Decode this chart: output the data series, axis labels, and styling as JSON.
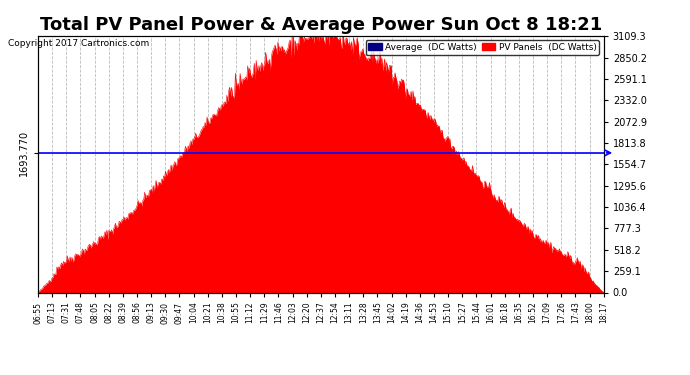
{
  "title": "Total PV Panel Power & Average Power Sun Oct 8 18:21",
  "copyright": "Copyright 2017 Cartronics.com",
  "avg_value": 1693.77,
  "avg_label": "1693.770",
  "y_max": 3109.3,
  "y_min": 0.0,
  "y_ticks": [
    0.0,
    259.1,
    518.2,
    777.3,
    1036.4,
    1295.6,
    1554.7,
    1813.8,
    2072.9,
    2332.0,
    2591.1,
    2850.2,
    3109.3
  ],
  "fill_color": "#FF0000",
  "line_color": "#FF0000",
  "avg_line_color": "#0000FF",
  "background_color": "#FFFFFF",
  "grid_color": "#AAAAAA",
  "title_fontsize": 13,
  "legend_avg_color": "#000080",
  "legend_pv_color": "#FF0000",
  "x_labels": [
    "06:55",
    "07:13",
    "07:31",
    "07:48",
    "08:05",
    "08:22",
    "08:39",
    "08:56",
    "09:13",
    "09:30",
    "09:47",
    "10:04",
    "10:21",
    "10:38",
    "10:55",
    "11:12",
    "11:29",
    "11:46",
    "12:03",
    "12:20",
    "12:37",
    "12:54",
    "13:11",
    "13:28",
    "13:45",
    "14:02",
    "14:19",
    "14:36",
    "14:53",
    "15:10",
    "15:27",
    "15:44",
    "16:01",
    "16:18",
    "16:35",
    "16:52",
    "17:09",
    "17:26",
    "17:43",
    "18:00",
    "18:17"
  ]
}
